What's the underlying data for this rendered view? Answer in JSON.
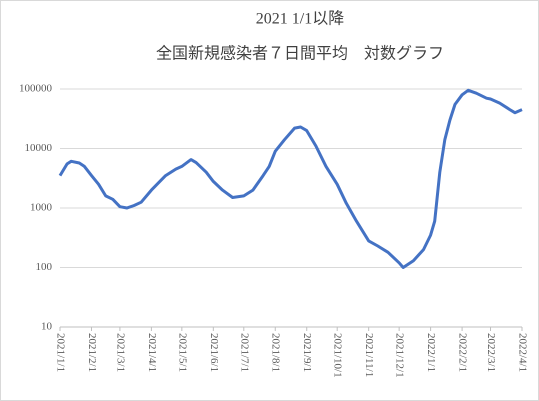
{
  "chart_data": {
    "type": "line",
    "title": "2021 1/1以降",
    "subtitle": "全国新規感染者７日間平均　対数グラフ",
    "x": [
      "2021/1/1",
      "2021/1/8",
      "2021/1/12",
      "2021/1/20",
      "2021/1/25",
      "2021/2/1",
      "2021/2/8",
      "2021/2/15",
      "2021/2/22",
      "2021/3/1",
      "2021/3/8",
      "2021/3/15",
      "2021/3/22",
      "2021/4/1",
      "2021/4/15",
      "2021/4/25",
      "2021/5/1",
      "2021/5/10",
      "2021/5/15",
      "2021/5/25",
      "2021/6/1",
      "2021/6/10",
      "2021/6/20",
      "2021/7/1",
      "2021/7/10",
      "2021/7/20",
      "2021/7/26",
      "2021/8/1",
      "2021/8/10",
      "2021/8/20",
      "2021/8/26",
      "2021/9/1",
      "2021/9/10",
      "2021/9/20",
      "2021/10/1",
      "2021/10/10",
      "2021/10/20",
      "2021/11/1",
      "2021/11/10",
      "2021/11/20",
      "2021/12/1",
      "2021/12/5",
      "2021/12/15",
      "2021/12/25",
      "2022/1/1",
      "2022/1/5",
      "2022/1/10",
      "2022/1/15",
      "2022/1/20",
      "2022/1/25",
      "2022/2/1",
      "2022/2/7",
      "2022/2/15",
      "2022/2/25",
      "2022/3/1",
      "2022/3/10",
      "2022/3/20",
      "2022/3/25",
      "2022/4/1"
    ],
    "values": [
      3500,
      5500,
      6100,
      5700,
      5000,
      3500,
      2500,
      1600,
      1400,
      1050,
      1000,
      1100,
      1250,
      2000,
      3500,
      4500,
      5000,
      6500,
      5800,
      4000,
      2800,
      2000,
      1500,
      1600,
      2000,
      3500,
      5000,
      9000,
      14000,
      22000,
      23000,
      20000,
      11000,
      5000,
      2500,
      1200,
      600,
      280,
      230,
      180,
      120,
      100,
      130,
      200,
      350,
      600,
      4000,
      14000,
      30000,
      55000,
      80000,
      95000,
      85000,
      70000,
      68000,
      58000,
      45000,
      40000,
      45000
    ],
    "color": "#4472c4",
    "log_scale": true,
    "ylim": [
      10,
      100000
    ],
    "yticks": [
      10,
      100,
      1000,
      10000,
      100000
    ],
    "xlim": [
      "2021/1/1",
      "2022/4/1"
    ],
    "xticks": [
      "2021/1/1",
      "2021/2/1",
      "2021/3/1",
      "2021/4/1",
      "2021/5/1",
      "2021/6/1",
      "2021/7/1",
      "2021/8/1",
      "2021/9/1",
      "2021/10/1",
      "2021/11/1",
      "2021/12/1",
      "2022/1/1",
      "2022/2/1",
      "2022/3/1",
      "2022/4/1"
    ],
    "grid": true
  }
}
